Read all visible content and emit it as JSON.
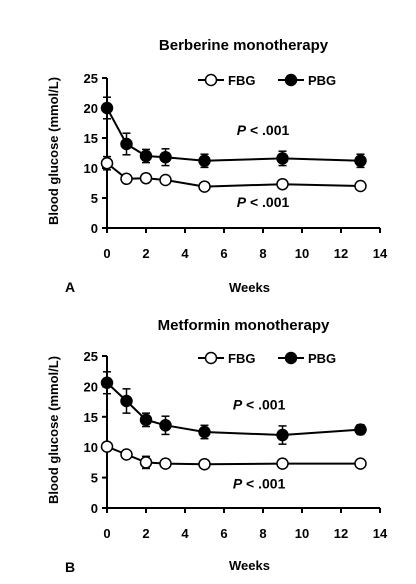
{
  "chart_data": [
    {
      "type": "line",
      "panel": "A",
      "title": "Berberine monotherapy",
      "xlabel": "Weeks",
      "ylabel": "Blood glucose (mmol/L)",
      "xlim": [
        0,
        14
      ],
      "ylim": [
        0,
        25
      ],
      "xticks": [
        "0",
        "2",
        "4",
        "6",
        "8",
        "10",
        "12",
        "14"
      ],
      "yticks": [
        "0",
        "5",
        "10",
        "15",
        "20",
        "25"
      ],
      "legend_position": "top-right",
      "grid": false,
      "series": [
        {
          "name": "FBG",
          "marker": "open-circle",
          "x": [
            0,
            1,
            2,
            3,
            5,
            9,
            13
          ],
          "y": [
            10.8,
            8.2,
            8.3,
            8.0,
            6.9,
            7.3,
            7.0
          ],
          "err": [
            1.1,
            0.6,
            0.7,
            0.7,
            0.5,
            0.7,
            0.6
          ]
        },
        {
          "name": "PBG",
          "marker": "filled-circle",
          "x": [
            0,
            1,
            2,
            3,
            5,
            9,
            13
          ],
          "y": [
            20.0,
            14.0,
            12.0,
            11.8,
            11.2,
            11.6,
            11.2
          ],
          "err": [
            1.8,
            1.8,
            1.1,
            1.4,
            1.1,
            1.2,
            1.1
          ]
        }
      ],
      "annotations": [
        {
          "text": "P < .001",
          "x": 8,
          "y": 15.5
        },
        {
          "text": "P < .001",
          "x": 8,
          "y": 3.5
        }
      ]
    },
    {
      "type": "line",
      "panel": "B",
      "title": "Metformin monotherapy",
      "xlabel": "Weeks",
      "ylabel": "Blood glucose (mmol/L)",
      "xlim": [
        0,
        14
      ],
      "ylim": [
        0,
        25
      ],
      "xticks": [
        "0",
        "2",
        "4",
        "6",
        "8",
        "10",
        "12",
        "14"
      ],
      "yticks": [
        "0",
        "5",
        "10",
        "15",
        "20",
        "25"
      ],
      "legend_position": "top-right",
      "grid": false,
      "series": [
        {
          "name": "FBG",
          "marker": "open-circle",
          "x": [
            0,
            1,
            2,
            3,
            5,
            9,
            13
          ],
          "y": [
            10.1,
            8.8,
            7.5,
            7.3,
            7.2,
            7.3,
            7.3
          ],
          "err": [
            0.7,
            0.6,
            1.0,
            0.6,
            0.5,
            0.7,
            0.6
          ]
        },
        {
          "name": "PBG",
          "marker": "filled-circle",
          "x": [
            0,
            1,
            2,
            3,
            5,
            9,
            13
          ],
          "y": [
            20.6,
            17.6,
            14.5,
            13.6,
            12.5,
            12.0,
            12.9
          ],
          "err": [
            1.8,
            2.0,
            1.1,
            1.5,
            1.1,
            1.5,
            0.8
          ]
        }
      ],
      "annotations": [
        {
          "text": "P < .001",
          "x": 7.8,
          "y": 16.2
        },
        {
          "text": "P < .001",
          "x": 7.8,
          "y": 3.2
        }
      ]
    }
  ]
}
